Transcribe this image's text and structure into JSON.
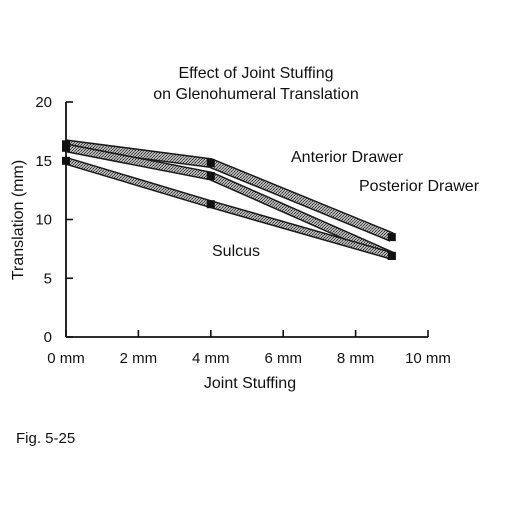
{
  "chart_data": {
    "type": "line",
    "title": [
      "Effect of Joint Stuffing",
      "on Glenohumeral Translation"
    ],
    "xlabel": "Joint Stuffing",
    "ylabel": "Translation (mm)",
    "x_ticks": [
      {
        "value": 0,
        "label": "0 mm"
      },
      {
        "value": 2,
        "label": "2 mm"
      },
      {
        "value": 4,
        "label": "4 mm"
      },
      {
        "value": 6,
        "label": "6 mm"
      },
      {
        "value": 8,
        "label": "8 mm"
      },
      {
        "value": 10,
        "label": "10 mm"
      }
    ],
    "y_ticks": [
      {
        "value": 0,
        "label": "0"
      },
      {
        "value": 5,
        "label": "5"
      },
      {
        "value": 10,
        "label": "10"
      },
      {
        "value": 15,
        "label": "15"
      },
      {
        "value": 20,
        "label": "20"
      }
    ],
    "xlim": [
      0,
      10
    ],
    "ylim": [
      0,
      20
    ],
    "grid": false,
    "series": [
      {
        "name": "Anterior Drawer",
        "x": [
          0,
          4,
          9
        ],
        "y": [
          16.4,
          14.8,
          8.5
        ]
      },
      {
        "name": "Posterior Drawer",
        "x": [
          0,
          4,
          9
        ],
        "y": [
          16.1,
          13.7,
          6.9
        ]
      },
      {
        "name": "Sulcus",
        "x": [
          0,
          4,
          9
        ],
        "y": [
          15.0,
          11.3,
          6.9
        ]
      }
    ]
  },
  "caption": "Fig. 5-25"
}
